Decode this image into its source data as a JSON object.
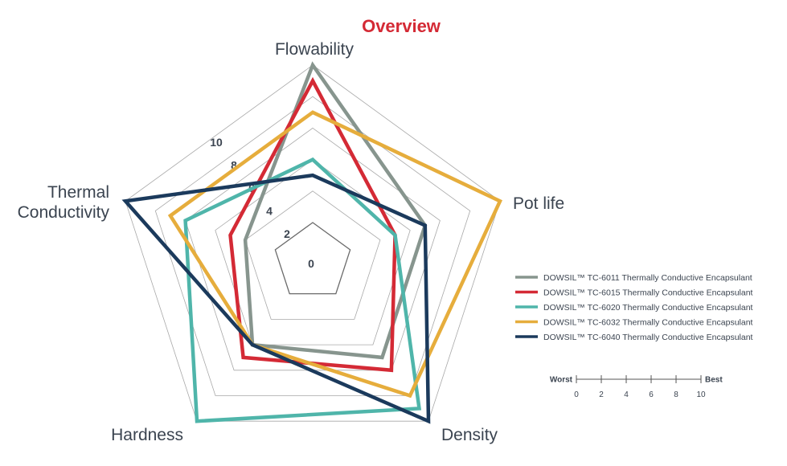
{
  "chart_data": {
    "type": "radar",
    "title": "Overview",
    "axes": [
      "Flowability",
      "Pot life",
      "Density",
      "Hardness",
      "Thermal Conductivity"
    ],
    "range": [
      0,
      10
    ],
    "ticks": [
      0,
      2,
      4,
      6,
      8,
      10
    ],
    "grid": true,
    "legend_position": "right",
    "series": [
      {
        "name": "DOWSIL™ TC-6011 Thermally Conductive Encapsulant",
        "color": "#87958e",
        "values": [
          10,
          5,
          5,
          4,
          2
        ]
      },
      {
        "name": "DOWSIL™ TC-6015 Thermally Conductive Encapsulant",
        "color": "#d42a35",
        "values": [
          9,
          3,
          6,
          5,
          3
        ]
      },
      {
        "name": "DOWSIL™ TC-6020 Thermally Conductive Encapsulant",
        "color": "#4fb5aa",
        "values": [
          4,
          3,
          9,
          10,
          6
        ]
      },
      {
        "name": "DOWSIL™ TC-6032 Thermally Conductive Encapsulant",
        "color": "#e6ad3c",
        "values": [
          7,
          10,
          8,
          4,
          7
        ]
      },
      {
        "name": "DOWSIL™ TC-6040 Thermally Conductive Encapsulant",
        "color": "#1b3a5c",
        "values": [
          3,
          5,
          10,
          4,
          10
        ]
      }
    ],
    "scale_legend": {
      "worst_label": "Worst",
      "best_label": "Best",
      "ticks": [
        "0",
        "2",
        "4",
        "6",
        "8",
        "10"
      ]
    },
    "title_color": "#d42a35"
  }
}
